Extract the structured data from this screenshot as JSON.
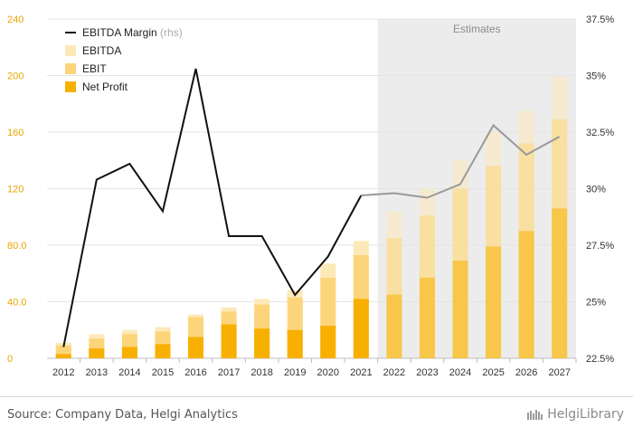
{
  "chart_data": {
    "type": "bar",
    "categories": [
      "2012",
      "2013",
      "2014",
      "2015",
      "2016",
      "2017",
      "2018",
      "2019",
      "2020",
      "2021",
      "2022",
      "2023",
      "2024",
      "2025",
      "2026",
      "2027"
    ],
    "estimates_from": "2022",
    "estimates_label": "Estimates",
    "series": [
      {
        "name": "EBITDA",
        "type": "bar",
        "axis": "left",
        "color": "#fde9b8",
        "values": [
          11,
          17,
          20,
          22,
          31,
          36,
          42,
          48,
          67,
          83,
          104,
          120,
          140,
          160,
          175,
          199
        ]
      },
      {
        "name": "EBIT",
        "type": "bar",
        "axis": "left",
        "color": "#fcd57a",
        "values": [
          9,
          14,
          17,
          19,
          29,
          33,
          38,
          43,
          57,
          73,
          85,
          101,
          120,
          136,
          152,
          169
        ]
      },
      {
        "name": "Net Profit",
        "type": "bar",
        "axis": "left",
        "color": "#f8b000",
        "values": [
          3,
          7,
          8,
          10,
          15,
          24,
          21,
          20,
          23,
          42,
          45,
          57,
          69,
          79,
          90,
          106
        ]
      },
      {
        "name": "EBITDA Margin",
        "name_suffix": "(rhs)",
        "type": "line",
        "axis": "right",
        "color": "#111111",
        "values": [
          23.0,
          30.4,
          31.1,
          29.0,
          35.3,
          27.9,
          27.9,
          25.3,
          27.0,
          29.7,
          29.8,
          29.6,
          30.2,
          32.8,
          31.5,
          32.3
        ]
      }
    ],
    "left_axis": {
      "min": 0,
      "max": 240,
      "ticks": [
        "0",
        "40.0",
        "80.0",
        "120",
        "160",
        "200",
        "240"
      ],
      "tick_values": [
        0,
        40,
        80,
        120,
        160,
        200,
        240
      ],
      "color": "#e8a800"
    },
    "right_axis": {
      "min": 22.5,
      "max": 37.5,
      "ticks": [
        "22.5%",
        "25%",
        "27.5%",
        "30%",
        "32.5%",
        "35%",
        "37.5%"
      ],
      "tick_values": [
        22.5,
        25,
        27.5,
        30,
        32.5,
        35,
        37.5
      ]
    },
    "grid": "horizontal",
    "legend_position": "top-left",
    "title": "",
    "xlabel": "",
    "ylabel": ""
  },
  "footer": {
    "source": "Source: Company Data, Helgi Analytics",
    "brand": "HelgiLibrary"
  }
}
